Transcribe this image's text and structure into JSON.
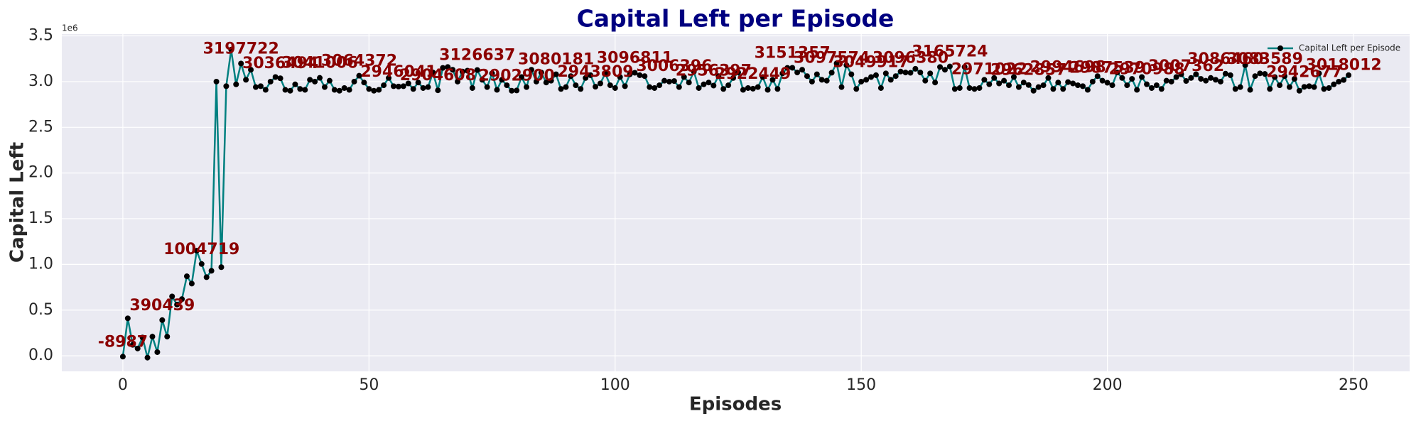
{
  "chart_data": {
    "type": "line",
    "title": "Capital Left per Episode",
    "x_label": "Episodes",
    "y_label": "Capital Left",
    "y_offset_text": "1e6",
    "xlim": [
      -12.4,
      261.4
    ],
    "xticks": [
      0,
      50,
      100,
      150,
      200,
      250
    ],
    "ylim": [
      -170000,
      3520000
    ],
    "yticks": [
      {
        "value": 0,
        "label": "0.0"
      },
      {
        "value": 500000,
        "label": "0.5"
      },
      {
        "value": 1000000,
        "label": "1.0"
      },
      {
        "value": 1500000,
        "label": "1.5"
      },
      {
        "value": 2000000,
        "label": "2.0"
      },
      {
        "value": 2500000,
        "label": "2.5"
      },
      {
        "value": 3000000,
        "label": "3.0"
      },
      {
        "value": 3500000,
        "label": "3.5"
      }
    ],
    "grid": true,
    "legend": "upper right",
    "x": [
      0,
      1,
      2,
      3,
      4,
      5,
      6,
      7,
      8,
      9,
      10,
      11,
      12,
      13,
      14,
      15,
      16,
      17,
      18,
      19,
      20,
      21,
      22,
      23,
      24,
      25,
      26,
      27,
      28,
      29,
      30,
      31,
      32,
      33,
      34,
      35,
      36,
      37,
      38,
      39,
      40,
      41,
      42,
      43,
      44,
      45,
      46,
      47,
      48,
      49,
      50,
      51,
      52,
      53,
      54,
      55,
      56,
      57,
      58,
      59,
      60,
      61,
      62,
      63,
      64,
      65,
      66,
      67,
      68,
      69,
      70,
      71,
      72,
      73,
      74,
      75,
      76,
      77,
      78,
      79,
      80,
      81,
      82,
      83,
      84,
      85,
      86,
      87,
      88,
      89,
      90,
      91,
      92,
      93,
      94,
      95,
      96,
      97,
      98,
      99,
      100,
      101,
      102,
      103,
      104,
      105,
      106,
      107,
      108,
      109,
      110,
      111,
      112,
      113,
      114,
      115,
      116,
      117,
      118,
      119,
      120,
      121,
      122,
      123,
      124,
      125,
      126,
      127,
      128,
      129,
      130,
      131,
      132,
      133,
      134,
      135,
      136,
      137,
      138,
      139,
      140,
      141,
      142,
      143,
      144,
      145,
      146,
      147,
      148,
      149,
      150,
      151,
      152,
      153,
      154,
      155,
      156,
      157,
      158,
      159,
      160,
      161,
      162,
      163,
      164,
      165,
      166,
      167,
      168,
      169,
      170,
      171,
      172,
      173,
      174,
      175,
      176,
      177,
      178,
      179,
      180,
      181,
      182,
      183,
      184,
      185,
      186,
      187,
      188,
      189,
      190,
      191,
      192,
      193,
      194,
      195,
      196,
      197,
      198,
      199,
      200,
      201,
      202,
      203,
      204,
      205,
      206,
      207,
      208,
      209,
      210,
      211,
      212,
      213,
      214,
      215,
      216,
      217,
      218,
      219,
      220,
      221,
      222,
      223,
      224,
      225,
      226,
      227,
      228,
      229,
      230,
      231,
      232,
      233,
      234,
      235,
      236,
      237,
      238,
      239,
      240,
      241,
      242,
      243,
      244,
      245,
      246,
      247,
      248,
      249
    ],
    "series": [
      {
        "name": "Capital Left per Episode",
        "color": "#008080",
        "marker_color": "#000000",
        "label_color": "#8b0000",
        "values": [
          -8987,
          410000,
          120000,
          80000,
          200000,
          -20000,
          210000,
          40000,
          390439,
          210000,
          650000,
          560000,
          620000,
          870000,
          790000,
          1150000,
          1004719,
          860000,
          930000,
          3000000,
          970000,
          2950000,
          3350000,
          2970000,
          3197722,
          3020000,
          3130000,
          2940000,
          2950000,
          2910000,
          3000000,
          3050000,
          3036494,
          2910000,
          2900000,
          2970000,
          2920000,
          2910000,
          3020000,
          3000000,
          3041006,
          2940000,
          3010000,
          2910000,
          2900000,
          2930000,
          2910000,
          3000000,
          3064372,
          2990000,
          2920000,
          2900000,
          2910000,
          2960000,
          3040000,
          2950000,
          2946041,
          2950000,
          2980000,
          2920000,
          2990000,
          2930000,
          2940000,
          3100000,
          2904608,
          3150000,
          3160000,
          3130000,
          3000000,
          3110000,
          3120000,
          2930000,
          3126637,
          3020000,
          2940000,
          3090000,
          2910000,
          3020000,
          2960000,
          2900000,
          2902900,
          3050000,
          2940000,
          3130000,
          3000000,
          3100000,
          2990000,
          3010000,
          3080181,
          2920000,
          2940000,
          3060000,
          2960000,
          2920000,
          3040000,
          3070000,
          2943809,
          2980000,
          3090000,
          2960000,
          2930000,
          3050000,
          2950000,
          3080000,
          3096811,
          3070000,
          3060000,
          2940000,
          2930000,
          2960000,
          3010000,
          3000000,
          3006396,
          2940000,
          3050000,
          2990000,
          3110000,
          2930000,
          2970000,
          2990000,
          2956397,
          3060000,
          2920000,
          2960000,
          3040000,
          3100000,
          2910000,
          2930000,
          2922449,
          2940000,
          3050000,
          2910000,
          3020000,
          2920000,
          3090000,
          3150000,
          3151357,
          3100000,
          3130000,
          3060000,
          3000000,
          3080000,
          3020000,
          3010000,
          3097574,
          3200000,
          2940000,
          3180000,
          3080000,
          2920000,
          3000000,
          3020000,
          3049917,
          3070000,
          2930000,
          3090000,
          3020000,
          3060000,
          3110000,
          3100000,
          3096380,
          3140000,
          3100000,
          3010000,
          3090000,
          2990000,
          3160000,
          3130000,
          3165724,
          2920000,
          2930000,
          3160000,
          2930000,
          2920000,
          2930000,
          3020000,
          2971022,
          3040000,
          2980000,
          3010000,
          2960000,
          3050000,
          2940000,
          2990000,
          2962857,
          2900000,
          2940000,
          2960000,
          3040000,
          2920000,
          2990000,
          2920000,
          2994698,
          2980000,
          2960000,
          2950000,
          2910000,
          3000000,
          3060000,
          3010000,
          2987539,
          2960000,
          3100000,
          3040000,
          2960000,
          3030000,
          2910000,
          3050000,
          2970988,
          2930000,
          2960000,
          2920000,
          3010000,
          3000000,
          3050000,
          3080000,
          3007362,
          3040000,
          3080000,
          3030000,
          3010000,
          3040000,
          3020000,
          3000000,
          3086460,
          3070000,
          2920000,
          2940000,
          3180000,
          2910000,
          3060000,
          3090000,
          3083589,
          2920000,
          3050000,
          2960000,
          3060000,
          2940000,
          3030000,
          2900000,
          2942677,
          2950000,
          2940000,
          3090000,
          2920000,
          2930000,
          2970000,
          3000000,
          3018012,
          3070000
        ],
        "value_labels": [
          "-8987",
          null,
          null,
          null,
          null,
          null,
          null,
          null,
          "390439",
          null,
          null,
          null,
          null,
          null,
          null,
          null,
          "1004719",
          null,
          null,
          null,
          null,
          null,
          null,
          null,
          "3197722",
          null,
          null,
          null,
          null,
          null,
          null,
          null,
          "3036494",
          null,
          null,
          null,
          null,
          null,
          null,
          null,
          "3041006",
          null,
          null,
          null,
          null,
          null,
          null,
          null,
          "3064372",
          null,
          null,
          null,
          null,
          null,
          null,
          null,
          "2946041",
          null,
          null,
          null,
          null,
          null,
          null,
          null,
          "2904608",
          null,
          null,
          null,
          null,
          null,
          null,
          null,
          "3126637",
          null,
          null,
          null,
          null,
          null,
          null,
          null,
          "2902900",
          null,
          null,
          null,
          null,
          null,
          null,
          null,
          "3080181",
          null,
          null,
          null,
          null,
          null,
          null,
          null,
          "2943809",
          null,
          null,
          null,
          null,
          null,
          null,
          null,
          "3096811",
          null,
          null,
          null,
          null,
          null,
          null,
          null,
          "3006396",
          null,
          null,
          null,
          null,
          null,
          null,
          null,
          "2956397",
          null,
          null,
          null,
          null,
          null,
          null,
          null,
          "2922449",
          null,
          null,
          null,
          null,
          null,
          null,
          null,
          "3151357",
          null,
          null,
          null,
          null,
          null,
          null,
          null,
          "3097574",
          null,
          null,
          null,
          null,
          null,
          null,
          null,
          "3049917",
          null,
          null,
          null,
          null,
          null,
          null,
          null,
          "3096380",
          null,
          null,
          null,
          null,
          null,
          null,
          null,
          "3165724",
          null,
          null,
          null,
          null,
          null,
          null,
          null,
          "2971022",
          null,
          null,
          null,
          null,
          null,
          null,
          null,
          "2962857",
          null,
          null,
          null,
          null,
          null,
          null,
          null,
          "2994698",
          null,
          null,
          null,
          null,
          null,
          null,
          null,
          "2987539",
          null,
          null,
          null,
          null,
          null,
          null,
          null,
          "2970988",
          null,
          null,
          null,
          null,
          null,
          null,
          null,
          "3007362",
          null,
          null,
          null,
          null,
          null,
          null,
          null,
          "3086460",
          null,
          null,
          null,
          null,
          null,
          null,
          null,
          "3083589",
          null,
          null,
          null,
          null,
          null,
          null,
          null,
          "2942677",
          null,
          null,
          null,
          null,
          null,
          null,
          null,
          "3018012",
          null
        ]
      }
    ]
  }
}
